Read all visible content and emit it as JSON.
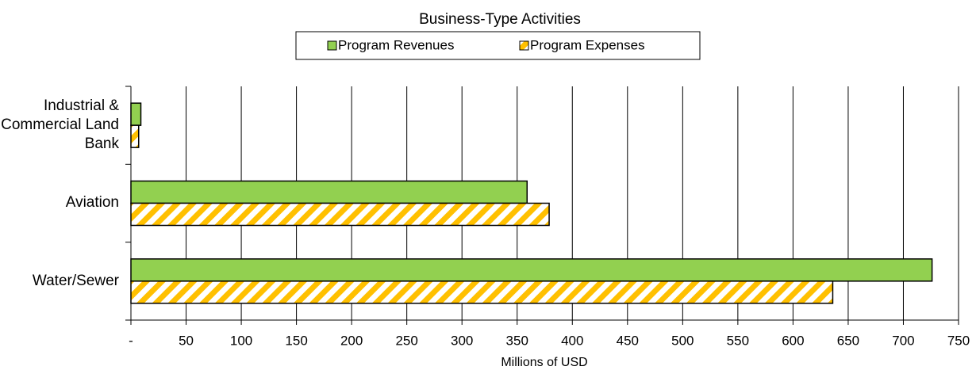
{
  "chart_data": {
    "type": "barh",
    "title": "Business-Type Activities",
    "x_label": "Millions  of USD",
    "categories": [
      "Industrial & Commercial Land Bank",
      "Aviation",
      "Water/Sewer"
    ],
    "series": [
      {
        "name": "Program Revenues",
        "color": "#92d050",
        "values": [
          9,
          359,
          726
        ]
      },
      {
        "name": "Program Expenses",
        "color": "#ffc000",
        "pattern": "hatch",
        "values": [
          7,
          379,
          636
        ]
      }
    ],
    "xlim": [
      0,
      750
    ],
    "xticks": [
      {
        "value": 0,
        "label": "-"
      },
      50,
      100,
      150,
      200,
      250,
      300,
      350,
      400,
      450,
      500,
      550,
      600,
      650,
      700,
      750
    ],
    "grid": true,
    "legend": "top"
  }
}
